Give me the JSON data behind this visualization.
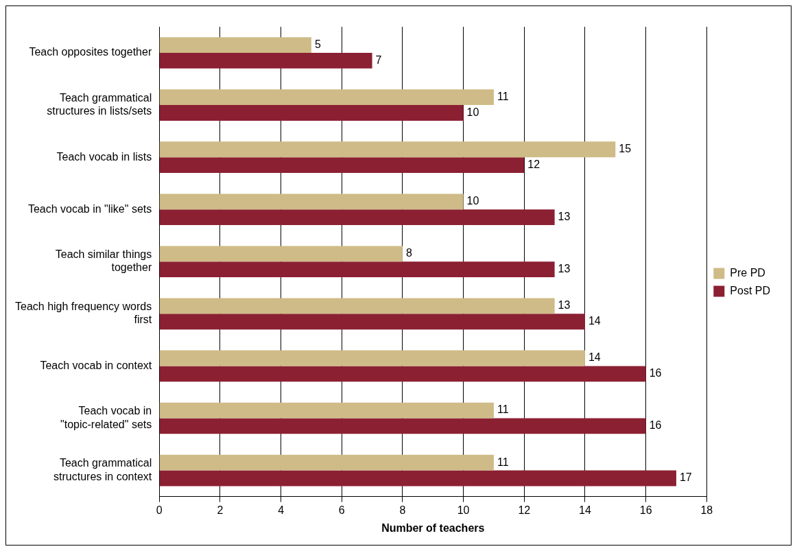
{
  "chart_data": {
    "type": "bar",
    "orientation": "horizontal",
    "xlabel": "Number of teachers",
    "categories": [
      "Teach opposites together",
      "Teach grammatical structures in lists/sets",
      "Teach vocab in lists",
      "Teach vocab in \"like\" sets",
      "Teach similar things together",
      "Teach high frequency words first",
      "Teach vocab in context",
      "Teach vocab in \"topic-related\" sets",
      "Teach grammatical structures in context"
    ],
    "series": [
      {
        "name": "Pre PD",
        "color": "#cfbb87",
        "values": [
          5,
          11,
          15,
          10,
          8,
          13,
          14,
          11,
          11
        ]
      },
      {
        "name": "Post PD",
        "color": "#8b2033",
        "values": [
          7,
          10,
          12,
          13,
          13,
          14,
          16,
          16,
          17
        ]
      }
    ],
    "xlim": [
      0,
      18
    ],
    "xticks": [
      0,
      2,
      4,
      6,
      8,
      10,
      12,
      14,
      16,
      18
    ],
    "grid": "x",
    "legend": "right",
    "data_labels": true
  }
}
